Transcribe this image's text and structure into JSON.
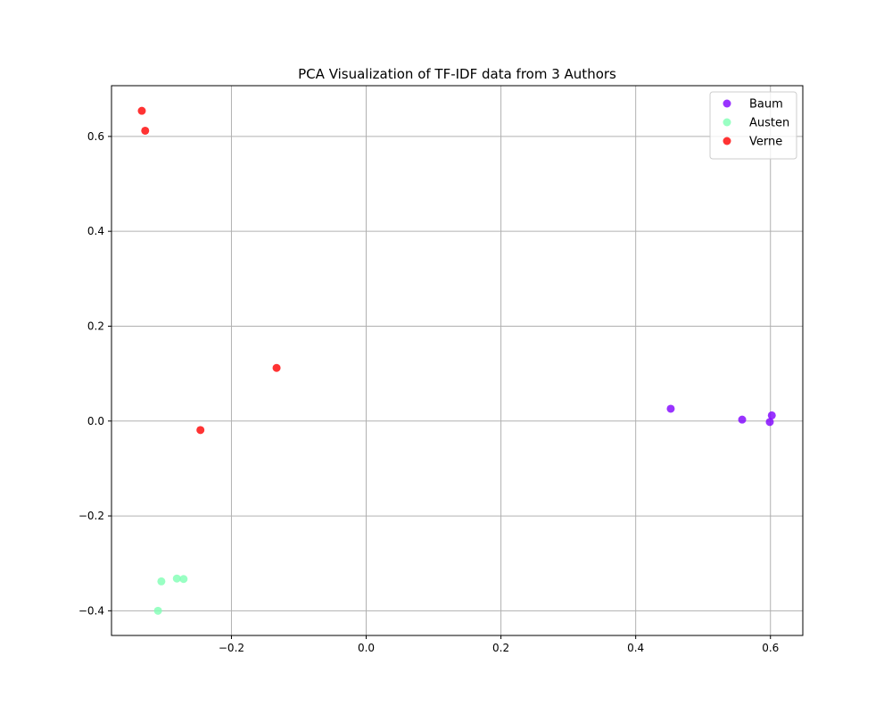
{
  "chart_data": {
    "type": "scatter",
    "title": "PCA Visualization of TF-IDF data from 3 Authors",
    "xlabel": "",
    "ylabel": "",
    "xlim": [
      -0.378,
      0.648
    ],
    "ylim": [
      -0.452,
      0.707
    ],
    "x_ticks": [
      -0.2,
      0.0,
      0.2,
      0.4,
      0.6
    ],
    "x_tick_labels": [
      "−0.2",
      "0.0",
      "0.2",
      "0.4",
      "0.6"
    ],
    "y_ticks": [
      -0.4,
      -0.2,
      0.0,
      0.2,
      0.4,
      0.6
    ],
    "y_tick_labels": [
      "−0.4",
      "−0.2",
      "0.0",
      "0.2",
      "0.4",
      "0.6"
    ],
    "grid": true,
    "legend_position": "top-right",
    "series": [
      {
        "name": "Baum",
        "color": "#8000ff",
        "points": [
          [
            0.452,
            0.026
          ],
          [
            0.558,
            0.003
          ],
          [
            0.602,
            0.012
          ],
          [
            0.599,
            -0.002
          ]
        ]
      },
      {
        "name": "Austen",
        "color": "#80ffb4",
        "points": [
          [
            -0.304,
            -0.338
          ],
          [
            -0.281,
            -0.332
          ],
          [
            -0.271,
            -0.333
          ],
          [
            -0.309,
            -0.4
          ]
        ]
      },
      {
        "name": "Verne",
        "color": "#ff0000",
        "points": [
          [
            -0.333,
            0.654
          ],
          [
            -0.328,
            0.612
          ],
          [
            -0.133,
            0.112
          ],
          [
            -0.246,
            -0.019
          ]
        ]
      }
    ]
  }
}
